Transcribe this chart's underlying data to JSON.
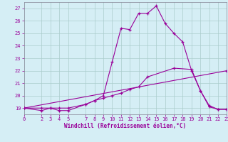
{
  "xlabel": "Windchill (Refroidissement éolien,°C)",
  "xlim": [
    0,
    23
  ],
  "ylim": [
    18.5,
    27.5
  ],
  "yticks": [
    19,
    20,
    21,
    22,
    23,
    24,
    25,
    26,
    27
  ],
  "xticks": [
    0,
    2,
    3,
    4,
    5,
    7,
    8,
    9,
    10,
    11,
    12,
    13,
    14,
    15,
    16,
    17,
    18,
    19,
    20,
    21,
    22,
    23
  ],
  "line_color": "#990099",
  "bg_color": "#d5eef5",
  "grid_color": "#aacccc",
  "line1_x": [
    0,
    2,
    3,
    4,
    5,
    7,
    8,
    9,
    10,
    11,
    12,
    13,
    14,
    15,
    16,
    17,
    18,
    19,
    20,
    21,
    22,
    23
  ],
  "line1_y": [
    19.0,
    18.8,
    19.0,
    18.8,
    18.8,
    19.3,
    19.6,
    20.0,
    22.7,
    25.4,
    25.3,
    26.6,
    26.6,
    27.2,
    25.8,
    25.0,
    24.3,
    22.0,
    20.4,
    19.1,
    18.9,
    18.9
  ],
  "line2_x": [
    0,
    2,
    3,
    4,
    5,
    7,
    8,
    9,
    10,
    11,
    12,
    13,
    14,
    17,
    19,
    20,
    21,
    22,
    23
  ],
  "line2_y": [
    19.0,
    19.0,
    19.0,
    19.0,
    19.0,
    19.3,
    19.6,
    19.8,
    20.0,
    20.2,
    20.5,
    20.7,
    21.5,
    22.2,
    22.1,
    20.4,
    19.2,
    18.9,
    18.9
  ],
  "line3_x": [
    0,
    23
  ],
  "line3_y": [
    19.0,
    22.0
  ]
}
